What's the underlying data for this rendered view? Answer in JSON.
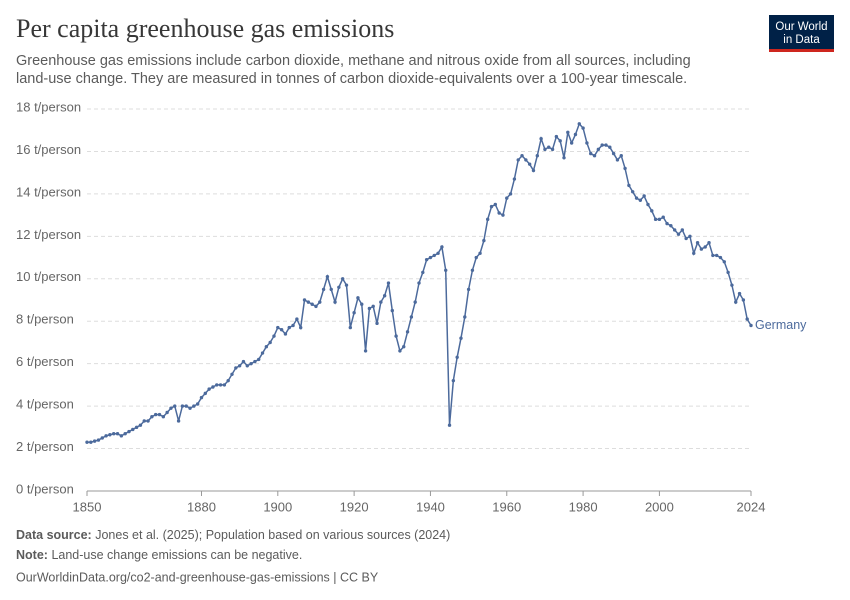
{
  "chart_data": {
    "type": "line",
    "title": "Per capita greenhouse gas emissions",
    "subtitle": [
      "Greenhouse gas emissions include carbon dioxide, methane and nitrous oxide from all sources, including",
      "land-use change. They are measured in tonnes of carbon dioxide-equivalents over a 100-year timescale."
    ],
    "x": [
      1850,
      1851,
      1852,
      1853,
      1854,
      1855,
      1856,
      1857,
      1858,
      1859,
      1860,
      1861,
      1862,
      1863,
      1864,
      1865,
      1866,
      1867,
      1868,
      1869,
      1870,
      1871,
      1872,
      1873,
      1874,
      1875,
      1876,
      1877,
      1878,
      1879,
      1880,
      1881,
      1882,
      1883,
      1884,
      1885,
      1886,
      1887,
      1888,
      1889,
      1890,
      1891,
      1892,
      1893,
      1894,
      1895,
      1896,
      1897,
      1898,
      1899,
      1900,
      1901,
      1902,
      1903,
      1904,
      1905,
      1906,
      1907,
      1908,
      1909,
      1910,
      1911,
      1912,
      1913,
      1914,
      1915,
      1916,
      1917,
      1918,
      1919,
      1920,
      1921,
      1922,
      1923,
      1924,
      1925,
      1926,
      1927,
      1928,
      1929,
      1930,
      1931,
      1932,
      1933,
      1934,
      1935,
      1936,
      1937,
      1938,
      1939,
      1940,
      1941,
      1942,
      1943,
      1944,
      1945,
      1946,
      1947,
      1948,
      1949,
      1950,
      1951,
      1952,
      1953,
      1954,
      1955,
      1956,
      1957,
      1958,
      1959,
      1960,
      1961,
      1962,
      1963,
      1964,
      1965,
      1966,
      1967,
      1968,
      1969,
      1970,
      1971,
      1972,
      1973,
      1974,
      1975,
      1976,
      1977,
      1978,
      1979,
      1980,
      1981,
      1982,
      1983,
      1984,
      1985,
      1986,
      1987,
      1988,
      1989,
      1990,
      1991,
      1992,
      1993,
      1994,
      1995,
      1996,
      1997,
      1998,
      1999,
      2000,
      2001,
      2002,
      2003,
      2004,
      2005,
      2006,
      2007,
      2008,
      2009,
      2010,
      2011,
      2012,
      2013,
      2014,
      2015,
      2016,
      2017,
      2018,
      2019,
      2020,
      2021,
      2022,
      2023,
      2024
    ],
    "series": [
      {
        "name": "Germany",
        "color": "#4c6a9c",
        "values": [
          2.3,
          2.3,
          2.35,
          2.4,
          2.5,
          2.6,
          2.65,
          2.7,
          2.7,
          2.6,
          2.7,
          2.8,
          2.9,
          3.0,
          3.1,
          3.3,
          3.3,
          3.5,
          3.6,
          3.6,
          3.5,
          3.7,
          3.9,
          4.0,
          3.3,
          4.0,
          4.0,
          3.9,
          4.0,
          4.1,
          4.4,
          4.6,
          4.8,
          4.9,
          5.0,
          5.0,
          5.0,
          5.2,
          5.5,
          5.8,
          5.9,
          6.1,
          5.9,
          6.0,
          6.1,
          6.2,
          6.5,
          6.8,
          7.0,
          7.3,
          7.7,
          7.6,
          7.4,
          7.7,
          7.8,
          8.1,
          7.7,
          9.0,
          8.9,
          8.8,
          8.7,
          8.9,
          9.5,
          10.1,
          9.5,
          8.9,
          9.6,
          10.0,
          9.7,
          7.7,
          8.4,
          9.1,
          8.8,
          6.6,
          8.6,
          8.7,
          7.9,
          8.9,
          9.2,
          9.8,
          8.5,
          7.3,
          6.6,
          6.8,
          7.5,
          8.2,
          8.9,
          9.8,
          10.3,
          10.9,
          11.0,
          11.1,
          11.2,
          11.5,
          10.4,
          3.1,
          5.2,
          6.3,
          7.2,
          8.2,
          9.5,
          10.4,
          11.0,
          11.2,
          11.8,
          12.8,
          13.4,
          13.5,
          13.1,
          13.0,
          13.8,
          14.0,
          14.7,
          15.6,
          15.8,
          15.6,
          15.4,
          15.1,
          15.8,
          16.6,
          16.1,
          16.2,
          16.1,
          16.7,
          16.5,
          15.7,
          16.9,
          16.4,
          16.8,
          17.3,
          17.1,
          16.4,
          15.9,
          15.8,
          16.1,
          16.3,
          16.3,
          16.2,
          15.9,
          15.6,
          15.8,
          15.2,
          14.4,
          14.1,
          13.8,
          13.7,
          13.9,
          13.5,
          13.2,
          12.8,
          12.8,
          12.9,
          12.6,
          12.5,
          12.3,
          12.1,
          12.3,
          11.9,
          12.0,
          11.2,
          11.7,
          11.4,
          11.5,
          11.7,
          11.1,
          11.1,
          11.0,
          10.8,
          10.3,
          9.7,
          8.9,
          9.3,
          9.0,
          8.1,
          7.8
        ]
      }
    ],
    "xlim": [
      1850,
      2024
    ],
    "xticks": [
      1850,
      1880,
      1900,
      1920,
      1940,
      1960,
      1980,
      2000,
      2024
    ],
    "ylim": [
      0,
      18
    ],
    "yticks": [
      {
        "value": 0,
        "label": "0 t/person"
      },
      {
        "value": 2,
        "label": "2 t/person"
      },
      {
        "value": 4,
        "label": "4 t/person"
      },
      {
        "value": 6,
        "label": "6 t/person"
      },
      {
        "value": 8,
        "label": "8 t/person"
      },
      {
        "value": 10,
        "label": "10 t/person"
      },
      {
        "value": 12,
        "label": "12 t/person"
      },
      {
        "value": 14,
        "label": "14 t/person"
      },
      {
        "value": 16,
        "label": "16 t/person"
      },
      {
        "value": 18,
        "label": "18 t/person"
      }
    ],
    "grid": true
  },
  "logo": [
    "Our World",
    "in Data"
  ],
  "footer": {
    "source_label": "Data source:",
    "source": "Jones et al. (2025); Population based on various sources (2024)",
    "note_label": "Note:",
    "note": "Land-use change emissions can be negative.",
    "link": "OurWorldinData.org/co2-and-greenhouse-gas-emissions | CC BY"
  }
}
